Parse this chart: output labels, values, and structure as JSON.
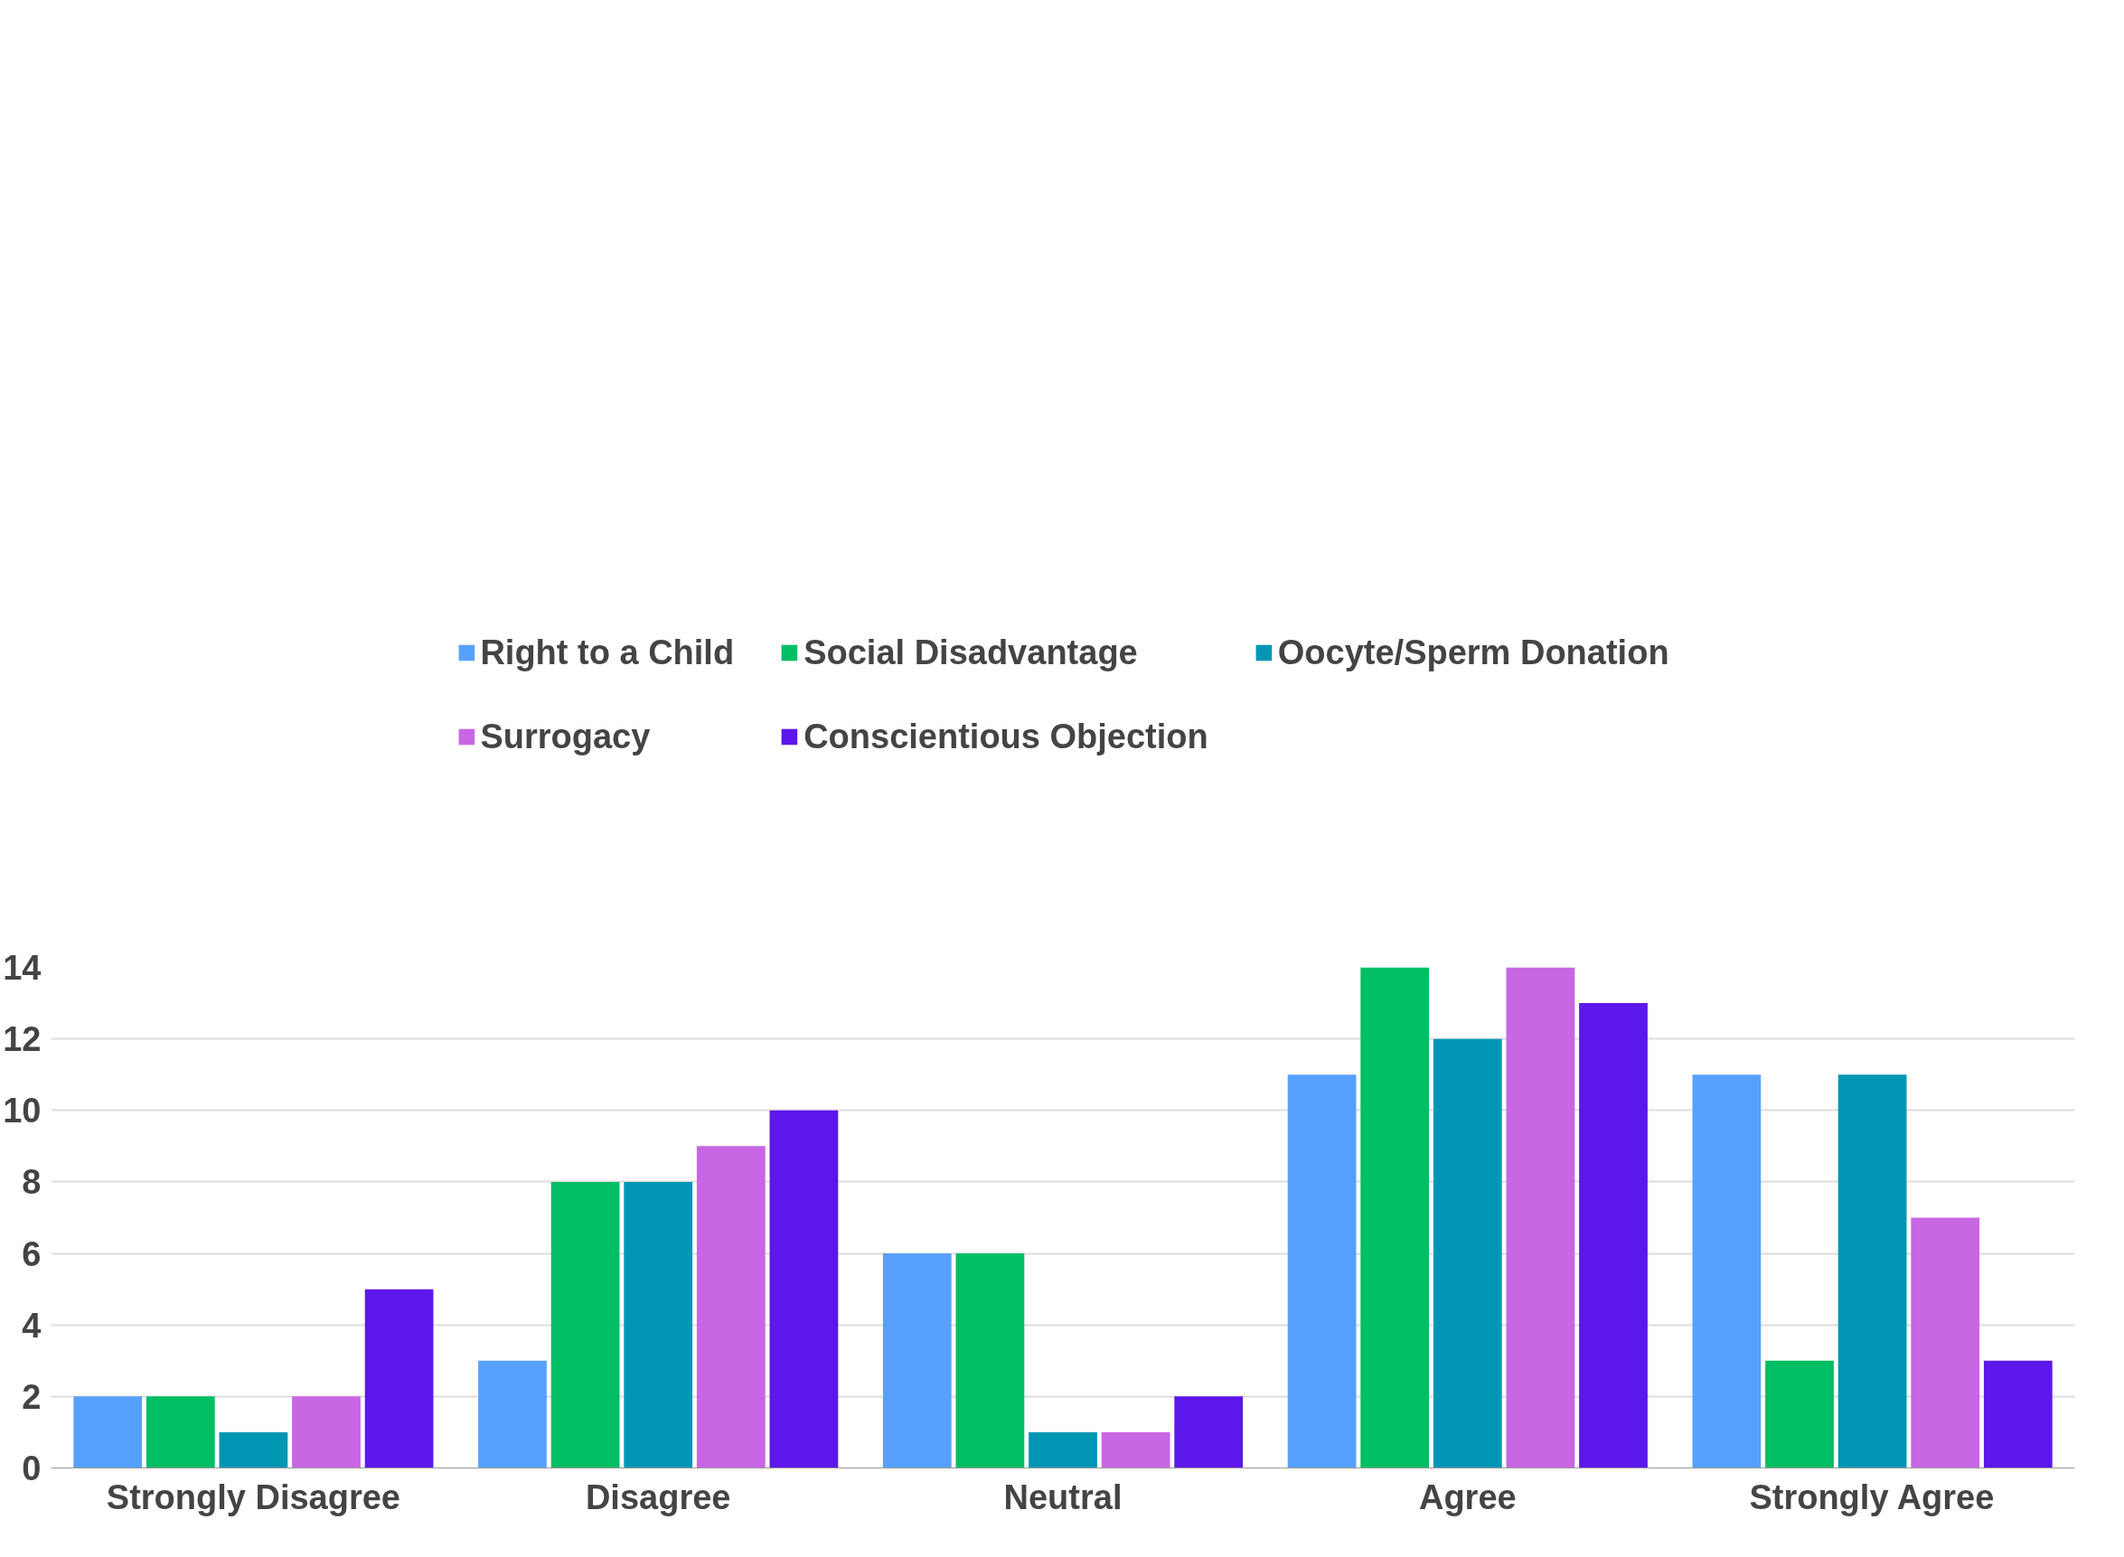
{
  "chart_data": {
    "type": "bar",
    "categories": [
      "Strongly Disagree",
      "Disagree",
      "Neutral",
      "Agree",
      "Strongly Agree"
    ],
    "series": [
      {
        "name": "Right to a Child",
        "color": "#58a0fe",
        "values": [
          2,
          3,
          6,
          11,
          11
        ]
      },
      {
        "name": "Social Disadvantage",
        "color": "#00be63",
        "values": [
          2,
          8,
          6,
          14,
          3
        ]
      },
      {
        "name": "Oocyte/Sperm Donation",
        "color": "#0096b4",
        "values": [
          1,
          8,
          1,
          12,
          11
        ]
      },
      {
        "name": "Surrogacy",
        "color": "#c866e3",
        "values": [
          2,
          9,
          1,
          14,
          7
        ]
      },
      {
        "name": "Conscientious Objection",
        "color": "#5c17eb",
        "values": [
          5,
          10,
          2,
          13,
          3
        ]
      }
    ],
    "ylim": [
      0,
      14
    ],
    "yticks": [
      0,
      2,
      4,
      6,
      8,
      10,
      12,
      14
    ],
    "grid": "y",
    "legend": "top"
  }
}
